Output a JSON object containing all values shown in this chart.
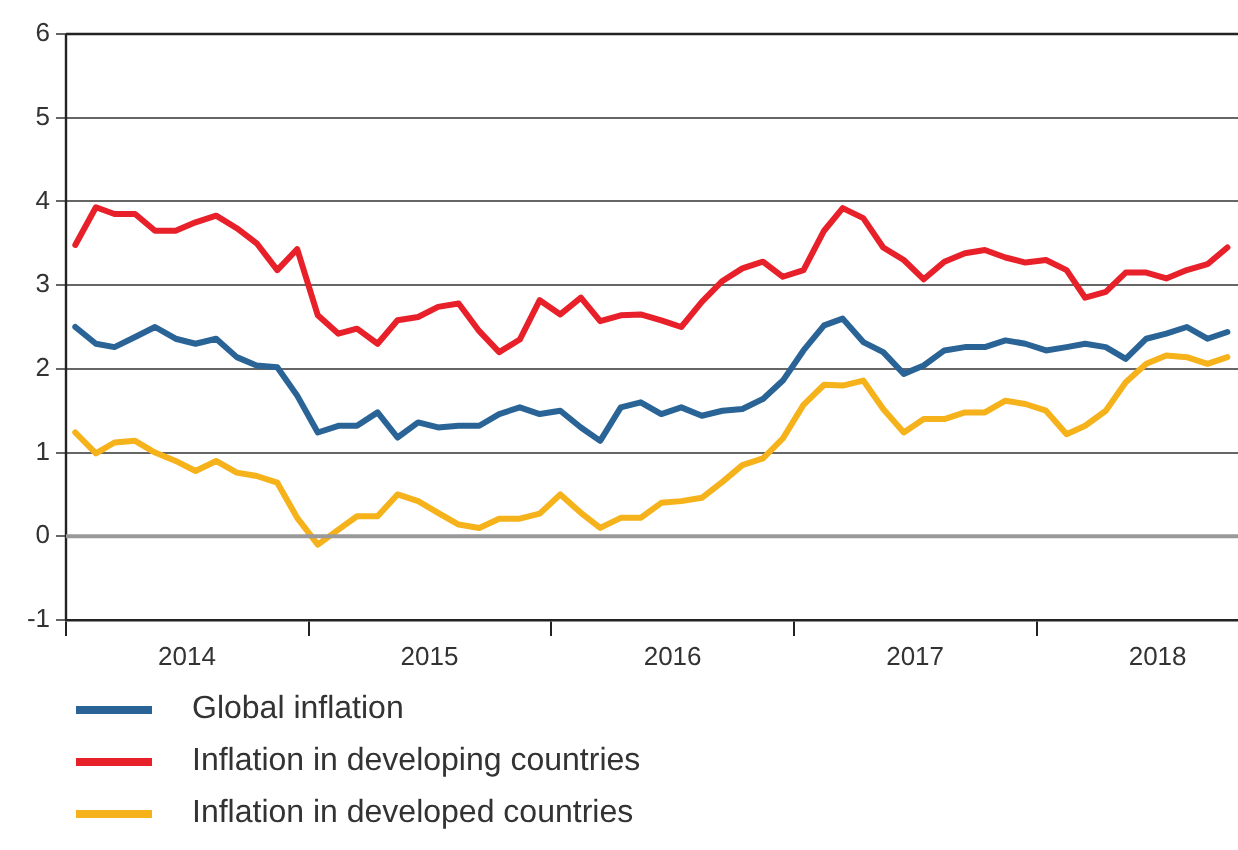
{
  "chart_data": {
    "type": "line",
    "x": [
      "2014-01-15",
      "2014-02-15",
      "2014-03-15",
      "2014-04-15",
      "2014-05-15",
      "2014-06-15",
      "2014-07-15",
      "2014-08-15",
      "2014-09-15",
      "2014-10-15",
      "2014-11-15",
      "2014-12-15",
      "2015-01-15",
      "2015-02-15",
      "2015-03-15",
      "2015-04-15",
      "2015-05-15",
      "2015-06-15",
      "2015-07-15",
      "2015-08-15",
      "2015-09-15",
      "2015-10-15",
      "2015-11-15",
      "2015-12-15",
      "2016-01-15",
      "2016-02-15",
      "2016-03-15",
      "2016-04-15",
      "2016-05-15",
      "2016-06-15",
      "2016-07-15",
      "2016-08-15",
      "2016-09-15",
      "2016-10-15",
      "2016-11-15",
      "2016-12-15",
      "2017-01-15",
      "2017-02-15",
      "2017-03-15",
      "2017-04-15",
      "2017-05-15",
      "2017-06-15",
      "2017-07-15",
      "2017-08-15",
      "2017-09-15",
      "2017-10-15",
      "2017-11-15",
      "2017-12-15",
      "2018-01-15",
      "2018-02-15",
      "2018-03-15",
      "2018-04-15",
      "2018-05-15",
      "2018-06-15",
      "2018-07-15",
      "2018-08-15",
      "2018-09-15",
      "2018-10-15"
    ],
    "series": [
      {
        "name": "Global inflation",
        "color": "#2a6496",
        "values": [
          2.5,
          2.3,
          2.26,
          2.38,
          2.5,
          2.36,
          2.3,
          2.36,
          2.14,
          2.04,
          2.02,
          1.68,
          1.24,
          1.32,
          1.32,
          1.48,
          1.18,
          1.36,
          1.3,
          1.32,
          1.32,
          1.46,
          1.54,
          1.46,
          1.5,
          1.3,
          1.14,
          1.54,
          1.6,
          1.46,
          1.54,
          1.44,
          1.5,
          1.52,
          1.64,
          1.86,
          2.22,
          2.52,
          2.6,
          2.32,
          2.2,
          1.94,
          2.04,
          2.22,
          2.26,
          2.26,
          2.34,
          2.3,
          2.22,
          2.26,
          2.3,
          2.26,
          2.12,
          2.36,
          2.42,
          2.5,
          2.36,
          2.44
        ]
      },
      {
        "name": "Inflation in developing countries",
        "color": "#e8202a",
        "values": [
          3.48,
          3.93,
          3.85,
          3.85,
          3.65,
          3.65,
          3.75,
          3.83,
          3.68,
          3.5,
          3.18,
          3.43,
          2.64,
          2.42,
          2.48,
          2.3,
          2.58,
          2.62,
          2.74,
          2.78,
          2.45,
          2.2,
          2.35,
          2.82,
          2.65,
          2.85,
          2.57,
          2.64,
          2.65,
          2.58,
          2.5,
          2.8,
          3.05,
          3.2,
          3.28,
          3.1,
          3.18,
          3.65,
          3.92,
          3.8,
          3.45,
          3.3,
          3.07,
          3.28,
          3.38,
          3.42,
          3.33,
          3.27,
          3.3,
          3.18,
          2.85,
          2.92,
          3.15,
          3.15,
          3.08,
          3.18,
          3.25,
          3.45
        ]
      },
      {
        "name": "Inflation in developed countries",
        "color": "#f5b21a",
        "values": [
          1.24,
          0.99,
          1.12,
          1.14,
          1.0,
          0.9,
          0.78,
          0.9,
          0.76,
          0.72,
          0.64,
          0.22,
          -0.1,
          0.08,
          0.24,
          0.24,
          0.5,
          0.42,
          0.28,
          0.14,
          0.1,
          0.21,
          0.21,
          0.27,
          0.5,
          0.28,
          0.1,
          0.22,
          0.22,
          0.4,
          0.42,
          0.46,
          0.65,
          0.85,
          0.93,
          1.17,
          1.57,
          1.81,
          1.8,
          1.86,
          1.52,
          1.24,
          1.4,
          1.4,
          1.48,
          1.48,
          1.62,
          1.58,
          1.5,
          1.22,
          1.32,
          1.5,
          1.84,
          2.06,
          2.16,
          2.14,
          2.06,
          2.14
        ]
      }
    ],
    "xlim": [
      "2014-01-01",
      "2018-10-31"
    ],
    "xticks": [
      {
        "value": "2014-01-01",
        "label": null
      },
      {
        "value": "2014-07-02",
        "label": "2014"
      },
      {
        "value": "2015-01-01",
        "label": null
      },
      {
        "value": "2015-07-02",
        "label": "2015"
      },
      {
        "value": "2016-01-01",
        "label": null
      },
      {
        "value": "2016-07-02",
        "label": "2016"
      },
      {
        "value": "2017-01-01",
        "label": null
      },
      {
        "value": "2017-07-02",
        "label": "2017"
      },
      {
        "value": "2018-01-01",
        "label": null
      },
      {
        "value": "2018-07-02",
        "label": "2018"
      }
    ],
    "ylim": [
      -1,
      6
    ],
    "yticks": [
      -1,
      0,
      1,
      2,
      3,
      4,
      5,
      6
    ],
    "ref_lines": [
      {
        "axis": "y",
        "value": 0
      }
    ],
    "grid": "y",
    "legend": "bottom",
    "marker": "none",
    "line_style": "solid"
  }
}
